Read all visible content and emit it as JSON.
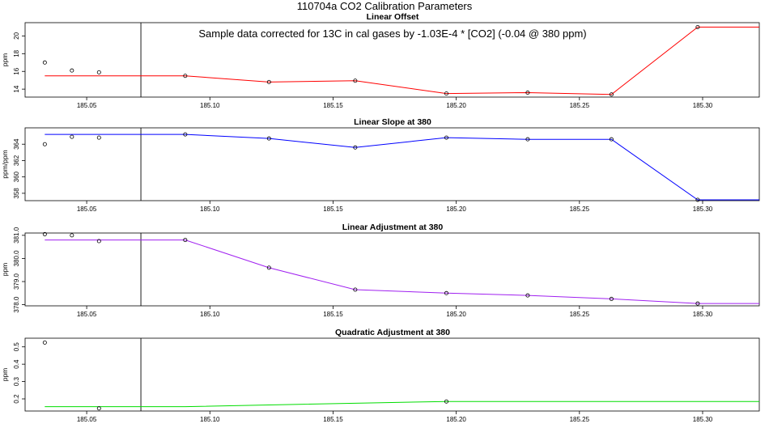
{
  "figure": {
    "title": "110704a   CO2 Calibration Parameters",
    "annotation": "Sample data corrected for 13C in cal gases by -1.03E-4 * [CO2] (-0.04 @ 380 ppm)"
  },
  "colors": {
    "frame": "#000000",
    "point": "#000000"
  },
  "chart_data": [
    {
      "type": "line",
      "title": "Linear Offset",
      "ylabel": "ppm",
      "xlim": [
        185.025,
        185.323
      ],
      "ylim": [
        13.1,
        21.5
      ],
      "x_ticks": [
        185.05,
        185.1,
        185.15,
        185.2,
        185.25,
        185.3
      ],
      "x_tick_labels": [
        "185.05",
        "185.10",
        "185.15",
        "185.20",
        "185.25",
        "185.30"
      ],
      "y_ticks": [
        14,
        16,
        18,
        20
      ],
      "y_tick_labels": [
        "14",
        "16",
        "18",
        "20"
      ],
      "vline_x": 185.072,
      "line_color": "#ff0000",
      "line": [
        {
          "x": 185.033,
          "y": 15.5
        },
        {
          "x": 185.09,
          "y": 15.5
        },
        {
          "x": 185.124,
          "y": 14.8
        },
        {
          "x": 185.159,
          "y": 14.95
        },
        {
          "x": 185.196,
          "y": 13.5
        },
        {
          "x": 185.229,
          "y": 13.6
        },
        {
          "x": 185.263,
          "y": 13.4
        },
        {
          "x": 185.298,
          "y": 21.0
        },
        {
          "x": 185.323,
          "y": 21.0
        }
      ],
      "points": [
        {
          "x": 185.033,
          "y": 17.0
        },
        {
          "x": 185.044,
          "y": 16.1
        },
        {
          "x": 185.055,
          "y": 15.9
        },
        {
          "x": 185.09,
          "y": 15.5
        },
        {
          "x": 185.124,
          "y": 14.8
        },
        {
          "x": 185.159,
          "y": 14.95
        },
        {
          "x": 185.196,
          "y": 13.5
        },
        {
          "x": 185.229,
          "y": 13.6
        },
        {
          "x": 185.263,
          "y": 13.4
        },
        {
          "x": 185.298,
          "y": 21.0
        }
      ]
    },
    {
      "type": "line",
      "title": "Linear Slope at 380",
      "ylabel": "ppm/ppm",
      "xlim": [
        185.025,
        185.323
      ],
      "ylim": [
        357.1,
        366.0
      ],
      "x_ticks": [
        185.05,
        185.1,
        185.15,
        185.2,
        185.25,
        185.3
      ],
      "x_tick_labels": [
        "185.05",
        "185.10",
        "185.15",
        "185.20",
        "185.25",
        "185.30"
      ],
      "y_ticks": [
        358,
        360,
        362,
        364
      ],
      "y_tick_labels": [
        "358",
        "360",
        "362",
        "364"
      ],
      "vline_x": 185.072,
      "line_color": "#0000ff",
      "line": [
        {
          "x": 185.033,
          "y": 365.2
        },
        {
          "x": 185.09,
          "y": 365.2
        },
        {
          "x": 185.124,
          "y": 364.7
        },
        {
          "x": 185.159,
          "y": 363.6
        },
        {
          "x": 185.196,
          "y": 364.8
        },
        {
          "x": 185.229,
          "y": 364.6
        },
        {
          "x": 185.263,
          "y": 364.6
        },
        {
          "x": 185.298,
          "y": 357.2
        },
        {
          "x": 185.323,
          "y": 357.2
        }
      ],
      "points": [
        {
          "x": 185.033,
          "y": 364.0
        },
        {
          "x": 185.044,
          "y": 364.9
        },
        {
          "x": 185.055,
          "y": 364.8
        },
        {
          "x": 185.09,
          "y": 365.2
        },
        {
          "x": 185.124,
          "y": 364.7
        },
        {
          "x": 185.159,
          "y": 363.6
        },
        {
          "x": 185.196,
          "y": 364.8
        },
        {
          "x": 185.229,
          "y": 364.6
        },
        {
          "x": 185.263,
          "y": 364.6
        },
        {
          "x": 185.298,
          "y": 357.2
        }
      ]
    },
    {
      "type": "line",
      "title": "Linear Adjustment at 380",
      "ylabel": "ppm",
      "xlim": [
        185.025,
        185.323
      ],
      "ylim": [
        377.95,
        381.1
      ],
      "x_ticks": [
        185.05,
        185.1,
        185.15,
        185.2,
        185.25,
        185.3
      ],
      "x_tick_labels": [
        "185.05",
        "185.10",
        "185.15",
        "185.20",
        "185.25",
        "185.30"
      ],
      "y_ticks": [
        378.0,
        379.0,
        380.0,
        381.0
      ],
      "y_tick_labels": [
        "378.0",
        "379.0",
        "380.0",
        "381.0"
      ],
      "vline_x": 185.072,
      "line_color": "#a020f0",
      "line": [
        {
          "x": 185.033,
          "y": 380.8
        },
        {
          "x": 185.09,
          "y": 380.8
        },
        {
          "x": 185.124,
          "y": 379.6
        },
        {
          "x": 185.159,
          "y": 378.65
        },
        {
          "x": 185.196,
          "y": 378.5
        },
        {
          "x": 185.229,
          "y": 378.4
        },
        {
          "x": 185.263,
          "y": 378.25
        },
        {
          "x": 185.298,
          "y": 378.05
        },
        {
          "x": 185.323,
          "y": 378.05
        }
      ],
      "points": [
        {
          "x": 185.033,
          "y": 381.05
        },
        {
          "x": 185.044,
          "y": 381.0
        },
        {
          "x": 185.055,
          "y": 380.75
        },
        {
          "x": 185.09,
          "y": 380.8
        },
        {
          "x": 185.124,
          "y": 379.6
        },
        {
          "x": 185.159,
          "y": 378.65
        },
        {
          "x": 185.196,
          "y": 378.5
        },
        {
          "x": 185.229,
          "y": 378.4
        },
        {
          "x": 185.263,
          "y": 378.25
        },
        {
          "x": 185.298,
          "y": 378.05
        }
      ]
    },
    {
      "type": "line",
      "title": "Quadratic Adjustment at 380",
      "ylabel": "ppm",
      "xlim": [
        185.025,
        185.323
      ],
      "ylim": [
        0.13,
        0.55
      ],
      "x_ticks": [
        185.05,
        185.1,
        185.15,
        185.2,
        185.25,
        185.3
      ],
      "x_tick_labels": [
        "185.05",
        "185.10",
        "185.15",
        "185.20",
        "185.25",
        "185.30"
      ],
      "y_ticks": [
        0.2,
        0.3,
        0.4,
        0.5
      ],
      "y_tick_labels": [
        "0.2",
        "0.3",
        "0.4",
        "0.5"
      ],
      "vline_x": 185.072,
      "line_color": "#00dd00",
      "line": [
        {
          "x": 185.033,
          "y": 0.155
        },
        {
          "x": 185.09,
          "y": 0.155
        },
        {
          "x": 185.124,
          "y": 0.165
        },
        {
          "x": 185.159,
          "y": 0.175
        },
        {
          "x": 185.196,
          "y": 0.185
        },
        {
          "x": 185.229,
          "y": 0.185
        },
        {
          "x": 185.263,
          "y": 0.185
        },
        {
          "x": 185.298,
          "y": 0.185
        },
        {
          "x": 185.323,
          "y": 0.185
        }
      ],
      "points": [
        {
          "x": 185.033,
          "y": 0.525
        },
        {
          "x": 185.055,
          "y": 0.145
        },
        {
          "x": 185.196,
          "y": 0.185
        }
      ]
    }
  ]
}
